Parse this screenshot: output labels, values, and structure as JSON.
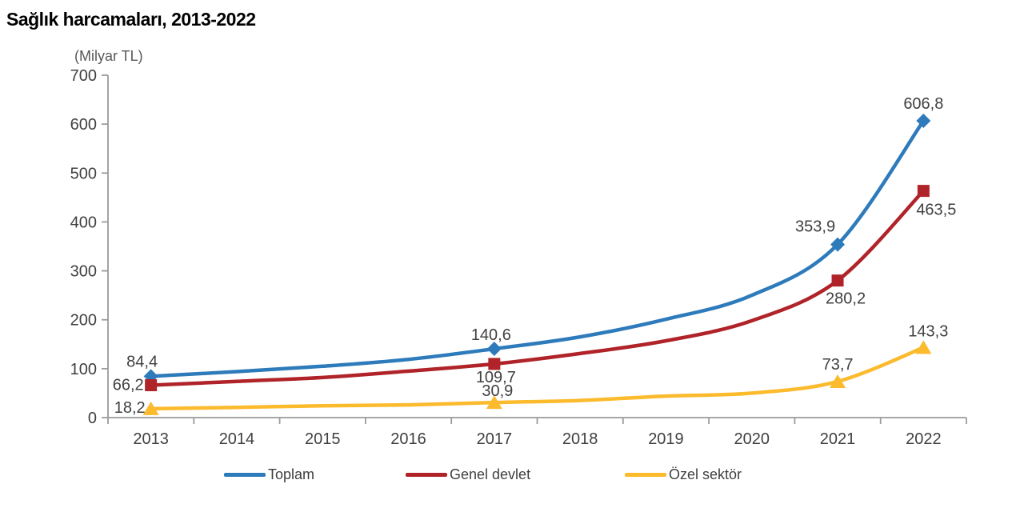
{
  "chart_data": {
    "type": "line",
    "title": "Sağlık harcamaları, 2013-2022",
    "unit_label": "(Milyar TL)",
    "categories": [
      "2013",
      "2014",
      "2015",
      "2016",
      "2017",
      "2018",
      "2019",
      "2020",
      "2021",
      "2022"
    ],
    "ylim": [
      0,
      700
    ],
    "y_ticks": [
      0,
      100,
      200,
      300,
      400,
      500,
      600,
      700
    ],
    "grid": false,
    "legend_position": "bottom",
    "axis_color": "#9B9B9B",
    "text_color": "#404040",
    "unit_color": "#595959",
    "line_smooth": true,
    "series": [
      {
        "id": "toplam",
        "name": "Toplam",
        "color": "#2E7BBB",
        "marker": "diamond",
        "values": [
          84.4,
          94,
          105,
          119,
          140.6,
          165,
          201,
          250,
          353.9,
          606.8
        ],
        "point_labels": [
          "84,4",
          null,
          null,
          null,
          "140,6",
          null,
          null,
          null,
          "353,9",
          "606,8"
        ],
        "label_offsets": [
          {
            "dx": -11,
            "dy": -12,
            "anchor": "middle"
          },
          null,
          null,
          null,
          {
            "dx": -4,
            "dy": -11,
            "anchor": "middle"
          },
          null,
          null,
          null,
          {
            "dx": -28,
            "dy": -16,
            "anchor": "middle"
          },
          {
            "dx": 0,
            "dy": -15,
            "anchor": "middle"
          }
        ]
      },
      {
        "id": "genel-devlet",
        "name": "Genel devlet",
        "color": "#B02328",
        "marker": "square",
        "values": [
          66.2,
          74,
          82,
          95,
          109.7,
          131,
          157,
          198,
          280.2,
          463.5
        ],
        "point_labels": [
          "66,2",
          null,
          null,
          null,
          "109,7",
          null,
          null,
          null,
          "280,2",
          "463,5"
        ],
        "label_offsets": [
          {
            "dx": -9,
            "dy": 6,
            "anchor": "end"
          },
          null,
          null,
          null,
          {
            "dx": 2,
            "dy": 23,
            "anchor": "middle"
          },
          null,
          null,
          null,
          {
            "dx": 10,
            "dy": 29,
            "anchor": "middle"
          },
          {
            "dx": 16,
            "dy": 30,
            "anchor": "middle"
          }
        ]
      },
      {
        "id": "ozel-sektor",
        "name": "Özel sektör",
        "color": "#FCBA2D",
        "marker": "triangle",
        "values": [
          18.2,
          21,
          24,
          26,
          30.9,
          35,
          44,
          50,
          73.7,
          143.3
        ],
        "point_labels": [
          "18,2",
          null,
          null,
          null,
          "30,9",
          null,
          null,
          null,
          "73,7",
          "143,3"
        ],
        "label_offsets": [
          {
            "dx": -7,
            "dy": 5,
            "anchor": "end"
          },
          null,
          null,
          null,
          {
            "dx": 4,
            "dy": -8,
            "anchor": "middle"
          },
          null,
          null,
          null,
          {
            "dx": 0,
            "dy": -15,
            "anchor": "middle"
          },
          {
            "dx": 6,
            "dy": -14,
            "anchor": "middle"
          }
        ]
      }
    ]
  },
  "legend": {
    "items": [
      {
        "label": "Toplam",
        "color": "#2E7BBB"
      },
      {
        "label": "Genel devlet",
        "color": "#B02328"
      },
      {
        "label": "Özel sektör",
        "color": "#FCBA2D"
      }
    ]
  }
}
